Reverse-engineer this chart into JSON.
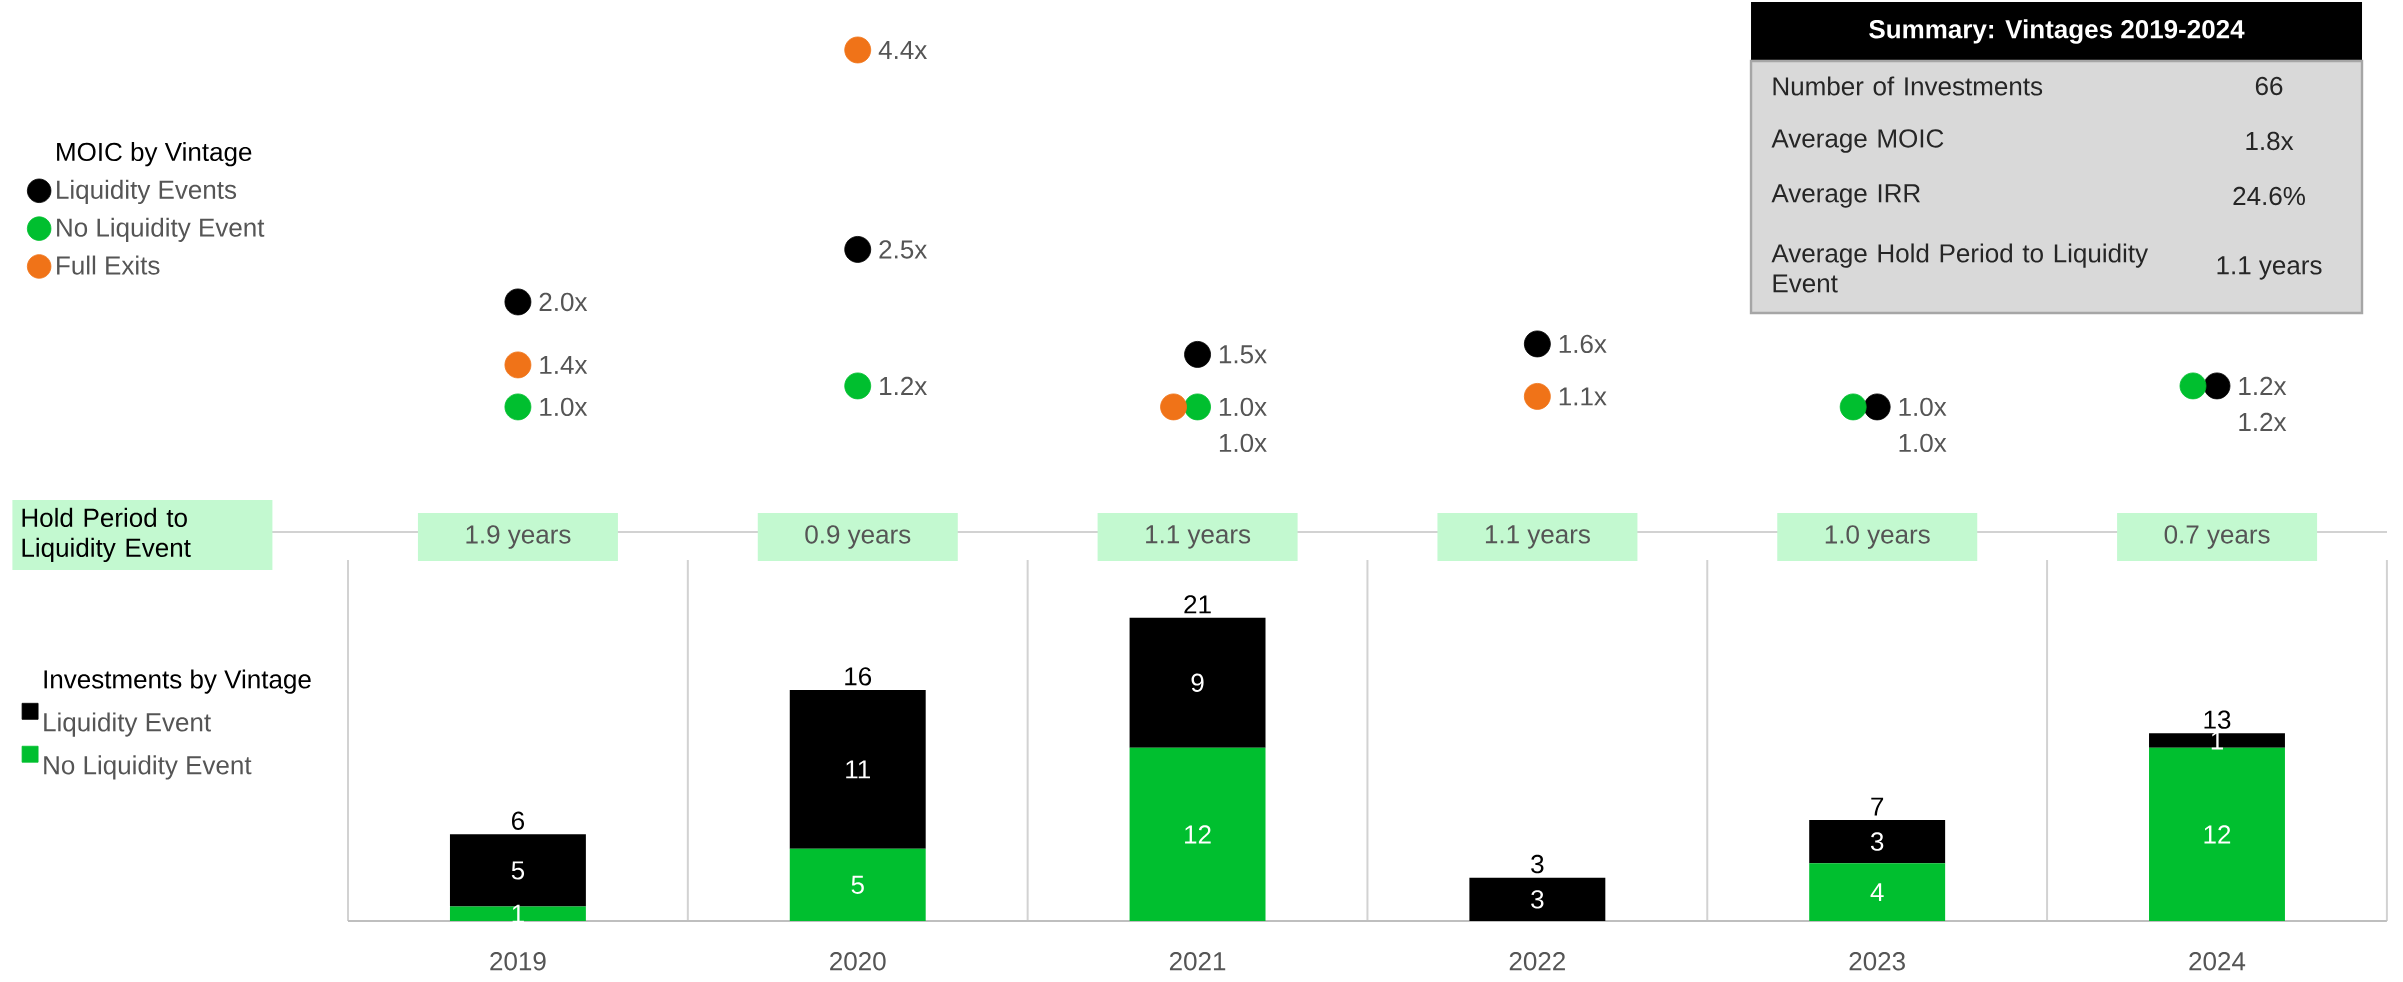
{
  "chart_data": [
    {
      "type": "scatter",
      "legend_title": "MOIC by Vintage",
      "categories": [
        "2019",
        "2020",
        "2021",
        "2022",
        "2023",
        "2024"
      ],
      "tick_labels": false,
      "marker": "circle",
      "legend": "left",
      "series": [
        {
          "name": "Liquidity Events",
          "color": "#000000",
          "values": [
            2.0,
            2.5,
            1.5,
            1.6,
            1.0,
            1.2
          ],
          "value_labels": [
            "2.0x",
            "2.5x",
            "1.5x",
            "1.6x",
            "1.0x",
            "1.2x"
          ]
        },
        {
          "name": "No Liquidity Event",
          "color": "#00bf2f",
          "values": [
            1.0,
            1.2,
            1.0,
            null,
            1.0,
            1.2
          ],
          "value_labels": [
            "1.0x",
            "1.2x",
            "1.0x",
            null,
            "1.0x",
            "1.2x"
          ]
        },
        {
          "name": "Full Exits",
          "color": "#f07318",
          "values": [
            1.4,
            4.4,
            1.0,
            1.1,
            null,
            null
          ],
          "value_labels": [
            "1.4x",
            "4.4x",
            "1.0x",
            "1.1x",
            null,
            null
          ]
        }
      ]
    },
    {
      "type": "bar",
      "stacked": true,
      "legend_title": "Investments by Vintage",
      "categories": [
        "2019",
        "2020",
        "2021",
        "2022",
        "2023",
        "2024"
      ],
      "tick_labels": "x",
      "ylim": [
        0,
        25
      ],
      "legend": "left",
      "series": [
        {
          "name": "No Liquidity Event",
          "color": "#00bf2f",
          "values": [
            1,
            5,
            12,
            0,
            4,
            12
          ],
          "value_labels": [
            "1",
            "5",
            "12",
            null,
            "4",
            "12"
          ]
        },
        {
          "name": "Liquidity Event",
          "color": "#000000",
          "values": [
            5,
            11,
            9,
            3,
            3,
            1
          ],
          "value_labels": [
            "5",
            "11",
            "9",
            "3",
            "3",
            "1"
          ]
        }
      ],
      "totals": [
        "6",
        "16",
        "21",
        "3",
        "7",
        "13"
      ],
      "annotations": [
        "Hold Period to Liquidity Event",
        "1.9 years",
        "0.9 years",
        "1.1 years",
        "1.1 years",
        "1.0 years",
        "0.7 years"
      ]
    },
    {
      "type": "other",
      "title": "Summary: Vintages 2019-2024",
      "annotations": [
        "Number of Investments",
        "66",
        "Average MOIC",
        "1.8x",
        "Average IRR",
        "24.6%",
        "Average Hold Period to Liquidity Event",
        "1.1 years"
      ]
    }
  ]
}
